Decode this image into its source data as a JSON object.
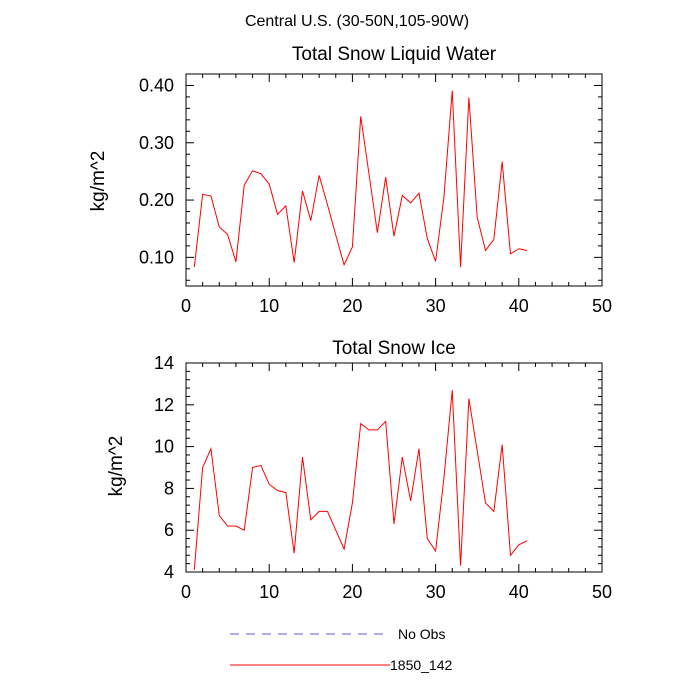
{
  "figure": {
    "suptitle": "Central U.S. (30-50N,105-90W)"
  },
  "chart_data": [
    {
      "type": "line",
      "title": "Total Snow Liquid Water",
      "xlabel": "",
      "ylabel": "kg/m^2",
      "xlim": [
        0,
        50
      ],
      "ylim": [
        0.05,
        0.42
      ],
      "xticks": [
        0,
        10,
        20,
        30,
        40,
        50
      ],
      "xtick_labels": [
        "0",
        "10",
        "20",
        "30",
        "40",
        "50"
      ],
      "yticks": [
        0.1,
        0.2,
        0.3,
        0.4
      ],
      "ytick_labels": [
        "0.10",
        "0.20",
        "0.30",
        "0.40"
      ],
      "x": [
        1,
        2,
        3,
        4,
        5,
        6,
        7,
        8,
        9,
        10,
        11,
        12,
        13,
        14,
        15,
        16,
        17,
        18,
        19,
        20,
        21,
        22,
        23,
        24,
        25,
        26,
        27,
        28,
        29,
        30,
        31,
        32,
        33,
        34,
        35,
        36,
        37,
        38,
        39,
        40,
        41
      ],
      "series": [
        {
          "name": "1850_142",
          "color": "#ff0000",
          "values": [
            0.083,
            0.21,
            0.207,
            0.153,
            0.14,
            0.092,
            0.226,
            0.251,
            0.246,
            0.228,
            0.175,
            0.19,
            0.091,
            0.216,
            0.164,
            0.243,
            0.192,
            0.139,
            0.087,
            0.118,
            0.346,
            0.245,
            0.143,
            0.24,
            0.137,
            0.208,
            0.195,
            0.212,
            0.133,
            0.093,
            0.205,
            0.391,
            0.083,
            0.379,
            0.17,
            0.112,
            0.131,
            0.267,
            0.106,
            0.115,
            0.112
          ]
        }
      ]
    },
    {
      "type": "line",
      "title": "Total Snow Ice",
      "xlabel": "",
      "ylabel": "kg/m^2",
      "xlim": [
        0,
        50
      ],
      "ylim": [
        4,
        14
      ],
      "xticks": [
        0,
        10,
        20,
        30,
        40,
        50
      ],
      "xtick_labels": [
        "0",
        "10",
        "20",
        "30",
        "40",
        "50"
      ],
      "yticks": [
        4,
        6,
        8,
        10,
        12,
        14
      ],
      "ytick_labels": [
        "4",
        "6",
        "8",
        "10",
        "12",
        "14"
      ],
      "x": [
        1,
        2,
        3,
        4,
        5,
        6,
        7,
        8,
        9,
        10,
        11,
        12,
        13,
        14,
        15,
        16,
        17,
        18,
        19,
        20,
        21,
        22,
        23,
        24,
        25,
        26,
        27,
        28,
        29,
        30,
        31,
        32,
        33,
        34,
        35,
        36,
        37,
        38,
        39,
        40,
        41
      ],
      "series": [
        {
          "name": "1850_142",
          "color": "#ff0000",
          "values": [
            4.1,
            9.0,
            9.9,
            6.7,
            6.2,
            6.2,
            6.0,
            9.0,
            9.1,
            8.2,
            7.9,
            7.8,
            4.9,
            9.5,
            6.5,
            6.9,
            6.9,
            6.0,
            5.1,
            7.3,
            11.1,
            10.8,
            10.8,
            11.2,
            6.3,
            9.5,
            7.4,
            9.9,
            5.6,
            5.0,
            8.5,
            12.7,
            4.3,
            12.3,
            9.8,
            7.3,
            6.9,
            10.1,
            4.8,
            5.3,
            5.5
          ]
        }
      ]
    }
  ],
  "legend": {
    "placement": "bottom-center",
    "entries": [
      {
        "label": "No Obs",
        "color": "#5b5bd6",
        "style": "dashed"
      },
      {
        "label": "1850_142",
        "color": "#ff0000",
        "style": "solid"
      }
    ]
  }
}
